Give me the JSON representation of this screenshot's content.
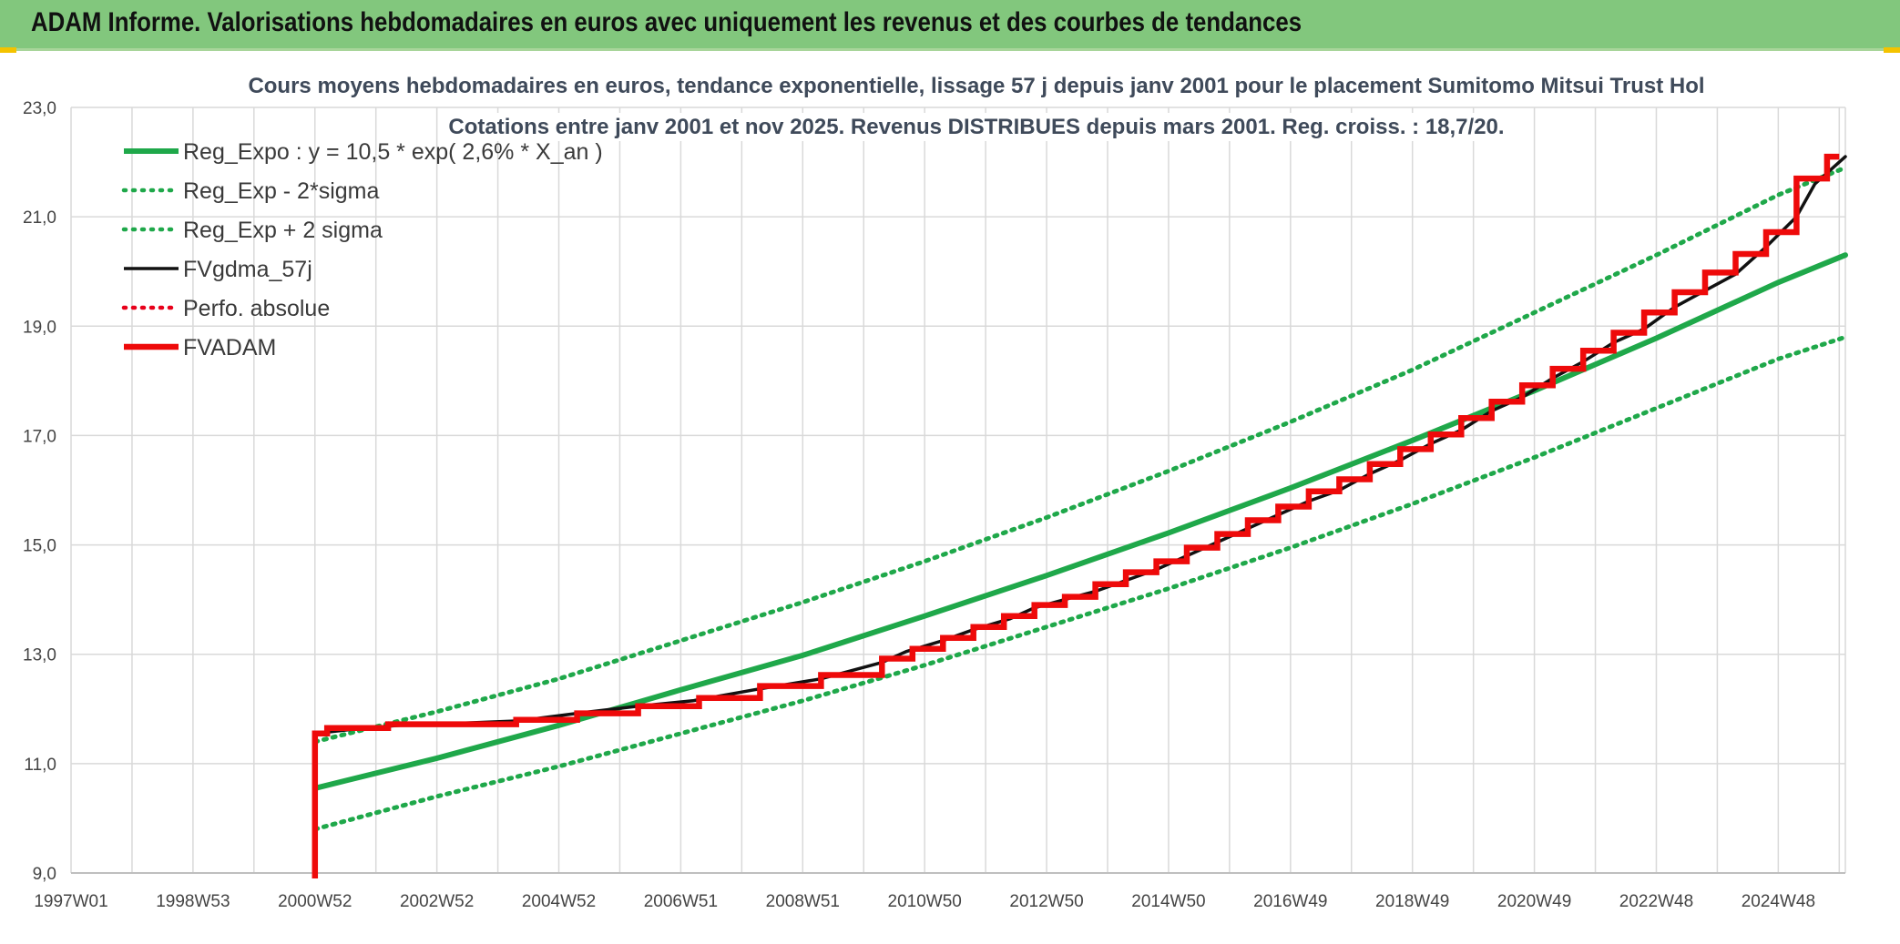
{
  "header": {
    "title": "ADAM Informe. Valorisations hebdomadaires en euros avec uniquement les revenus et des courbes de tendances"
  },
  "chart_data": {
    "type": "line",
    "title": "Cours moyens hebdomadaires en euros, tendance exponentielle, lissage 57 j depuis janv 2001 pour le placement Sumitomo Mitsui Trust Hol",
    "subtitle": "Cotations entre janv 2001 et nov 2025. Revenus DISTRIBUES depuis mars 2001. Reg. croiss. : 18,7/20.",
    "xlabel": "",
    "ylabel": "",
    "xlim": [
      1997.0,
      2026.1
    ],
    "ylim": [
      9.0,
      23.0
    ],
    "y_ticks": [
      "9,0",
      "11,0",
      "13,0",
      "15,0",
      "17,0",
      "19,0",
      "21,0",
      "23,0"
    ],
    "y_tick_values": [
      9,
      11,
      13,
      15,
      17,
      19,
      21,
      23
    ],
    "x_ticks": [
      "1997W01",
      "1998W53",
      "2000W52",
      "2002W52",
      "2004W52",
      "2006W51",
      "2008W51",
      "2010W50",
      "2012W50",
      "2014W50",
      "2016W49",
      "2018W49",
      "2020W49",
      "2022W48",
      "2024W48"
    ],
    "x_tick_positions": [
      1997.0,
      1999.0,
      2001.0,
      2003.0,
      2005.0,
      2007.0,
      2009.0,
      2011.0,
      2013.0,
      2015.0,
      2017.0,
      2019.0,
      2021.0,
      2023.0,
      2025.0
    ],
    "grid": true,
    "legend_position": "top-left",
    "series": [
      {
        "name": "Reg_Expo : y = 10,5 * exp( 2,6% *  X_an )",
        "color": "#1fa84a",
        "style": "solid",
        "points": [
          [
            2001.0,
            10.55
          ],
          [
            2003.0,
            11.1
          ],
          [
            2005.0,
            11.7
          ],
          [
            2007.0,
            12.35
          ],
          [
            2009.0,
            12.98
          ],
          [
            2011.0,
            13.7
          ],
          [
            2013.0,
            14.44
          ],
          [
            2015.0,
            15.22
          ],
          [
            2017.0,
            16.04
          ],
          [
            2019.0,
            16.91
          ],
          [
            2021.0,
            17.82
          ],
          [
            2023.0,
            18.78
          ],
          [
            2025.0,
            19.8
          ],
          [
            2026.1,
            20.3
          ]
        ]
      },
      {
        "name": "Reg_Exp - 2*sigma",
        "color": "#1fa84a",
        "style": "dotted",
        "points": [
          [
            2001.0,
            9.8
          ],
          [
            2003.0,
            10.4
          ],
          [
            2005.0,
            10.95
          ],
          [
            2007.0,
            11.55
          ],
          [
            2009.0,
            12.15
          ],
          [
            2011.0,
            12.8
          ],
          [
            2013.0,
            13.5
          ],
          [
            2015.0,
            14.2
          ],
          [
            2017.0,
            14.95
          ],
          [
            2019.0,
            15.75
          ],
          [
            2021.0,
            16.6
          ],
          [
            2023.0,
            17.5
          ],
          [
            2025.0,
            18.4
          ],
          [
            2026.1,
            18.8
          ]
        ]
      },
      {
        "name": "Reg_Exp + 2 sigma",
        "color": "#1fa84a",
        "style": "dotted",
        "points": [
          [
            2001.0,
            11.4
          ],
          [
            2003.0,
            11.95
          ],
          [
            2005.0,
            12.55
          ],
          [
            2007.0,
            13.25
          ],
          [
            2009.0,
            13.95
          ],
          [
            2011.0,
            14.7
          ],
          [
            2013.0,
            15.5
          ],
          [
            2015.0,
            16.35
          ],
          [
            2017.0,
            17.25
          ],
          [
            2019.0,
            18.2
          ],
          [
            2021.0,
            19.25
          ],
          [
            2023.0,
            20.3
          ],
          [
            2025.0,
            21.4
          ],
          [
            2026.1,
            21.9
          ]
        ]
      },
      {
        "name": "FVgdma_57j",
        "color": "#111111",
        "style": "solid",
        "points": [
          [
            2001.0,
            11.55
          ],
          [
            2001.4,
            11.6
          ],
          [
            2001.8,
            11.65
          ],
          [
            2002.4,
            11.7
          ],
          [
            2003.0,
            11.72
          ],
          [
            2004.3,
            11.78
          ],
          [
            2004.6,
            11.82
          ],
          [
            2005.3,
            11.92
          ],
          [
            2006.3,
            12.05
          ],
          [
            2007.2,
            12.15
          ],
          [
            2008.2,
            12.35
          ],
          [
            2009.3,
            12.55
          ],
          [
            2010.3,
            12.85
          ],
          [
            2010.7,
            13.05
          ],
          [
            2011.3,
            13.25
          ],
          [
            2011.8,
            13.45
          ],
          [
            2012.4,
            13.65
          ],
          [
            2012.8,
            13.85
          ],
          [
            2013.3,
            14.0
          ],
          [
            2013.8,
            14.15
          ],
          [
            2014.3,
            14.35
          ],
          [
            2014.8,
            14.55
          ],
          [
            2015.3,
            14.8
          ],
          [
            2015.8,
            15.05
          ],
          [
            2016.3,
            15.3
          ],
          [
            2016.8,
            15.55
          ],
          [
            2017.3,
            15.8
          ],
          [
            2017.8,
            16.0
          ],
          [
            2018.3,
            16.3
          ],
          [
            2018.8,
            16.55
          ],
          [
            2019.3,
            16.85
          ],
          [
            2019.8,
            17.1
          ],
          [
            2020.3,
            17.45
          ],
          [
            2020.8,
            17.7
          ],
          [
            2021.3,
            18.05
          ],
          [
            2021.8,
            18.35
          ],
          [
            2022.3,
            18.7
          ],
          [
            2022.8,
            18.95
          ],
          [
            2023.3,
            19.35
          ],
          [
            2023.8,
            19.65
          ],
          [
            2024.3,
            19.95
          ],
          [
            2024.8,
            20.45
          ],
          [
            2025.3,
            21.0
          ],
          [
            2025.6,
            21.6
          ],
          [
            2025.9,
            21.9
          ],
          [
            2026.1,
            22.1
          ]
        ]
      },
      {
        "name": "Perfo. absolue",
        "color": "#e8001a",
        "style": "dotted",
        "points": []
      },
      {
        "name": "FVADAM",
        "color": "#ee0a0a",
        "style": "step",
        "points": [
          [
            2001.0,
            8.9
          ],
          [
            2001.0,
            11.55
          ],
          [
            2001.2,
            11.55
          ],
          [
            2001.2,
            11.65
          ],
          [
            2002.2,
            11.65
          ],
          [
            2002.2,
            11.72
          ],
          [
            2004.3,
            11.72
          ],
          [
            2004.3,
            11.8
          ],
          [
            2005.3,
            11.8
          ],
          [
            2005.3,
            11.92
          ],
          [
            2006.3,
            11.92
          ],
          [
            2006.3,
            12.05
          ],
          [
            2007.3,
            12.05
          ],
          [
            2007.3,
            12.2
          ],
          [
            2008.3,
            12.2
          ],
          [
            2008.3,
            12.42
          ],
          [
            2009.3,
            12.42
          ],
          [
            2009.3,
            12.62
          ],
          [
            2010.3,
            12.62
          ],
          [
            2010.3,
            12.92
          ],
          [
            2010.8,
            12.92
          ],
          [
            2010.8,
            13.1
          ],
          [
            2011.3,
            13.1
          ],
          [
            2011.3,
            13.3
          ],
          [
            2011.8,
            13.3
          ],
          [
            2011.8,
            13.5
          ],
          [
            2012.3,
            13.5
          ],
          [
            2012.3,
            13.7
          ],
          [
            2012.8,
            13.7
          ],
          [
            2012.8,
            13.9
          ],
          [
            2013.3,
            13.9
          ],
          [
            2013.3,
            14.05
          ],
          [
            2013.8,
            14.05
          ],
          [
            2013.8,
            14.28
          ],
          [
            2014.3,
            14.28
          ],
          [
            2014.3,
            14.5
          ],
          [
            2014.8,
            14.5
          ],
          [
            2014.8,
            14.7
          ],
          [
            2015.3,
            14.7
          ],
          [
            2015.3,
            14.95
          ],
          [
            2015.8,
            14.95
          ],
          [
            2015.8,
            15.2
          ],
          [
            2016.3,
            15.2
          ],
          [
            2016.3,
            15.45
          ],
          [
            2016.8,
            15.45
          ],
          [
            2016.8,
            15.7
          ],
          [
            2017.3,
            15.7
          ],
          [
            2017.3,
            15.98
          ],
          [
            2017.8,
            15.98
          ],
          [
            2017.8,
            16.2
          ],
          [
            2018.3,
            16.2
          ],
          [
            2018.3,
            16.48
          ],
          [
            2018.8,
            16.48
          ],
          [
            2018.8,
            16.75
          ],
          [
            2019.3,
            16.75
          ],
          [
            2019.3,
            17.02
          ],
          [
            2019.8,
            17.02
          ],
          [
            2019.8,
            17.32
          ],
          [
            2020.3,
            17.32
          ],
          [
            2020.3,
            17.62
          ],
          [
            2020.8,
            17.62
          ],
          [
            2020.8,
            17.92
          ],
          [
            2021.3,
            17.92
          ],
          [
            2021.3,
            18.22
          ],
          [
            2021.8,
            18.22
          ],
          [
            2021.8,
            18.55
          ],
          [
            2022.3,
            18.55
          ],
          [
            2022.3,
            18.88
          ],
          [
            2022.8,
            18.88
          ],
          [
            2022.8,
            19.25
          ],
          [
            2023.3,
            19.25
          ],
          [
            2023.3,
            19.62
          ],
          [
            2023.8,
            19.62
          ],
          [
            2023.8,
            19.98
          ],
          [
            2024.3,
            19.98
          ],
          [
            2024.3,
            20.32
          ],
          [
            2024.8,
            20.32
          ],
          [
            2024.8,
            20.72
          ],
          [
            2025.3,
            20.72
          ],
          [
            2025.3,
            21.7
          ],
          [
            2025.8,
            21.7
          ],
          [
            2025.8,
            22.1
          ],
          [
            2026.0,
            22.1
          ]
        ]
      }
    ]
  }
}
